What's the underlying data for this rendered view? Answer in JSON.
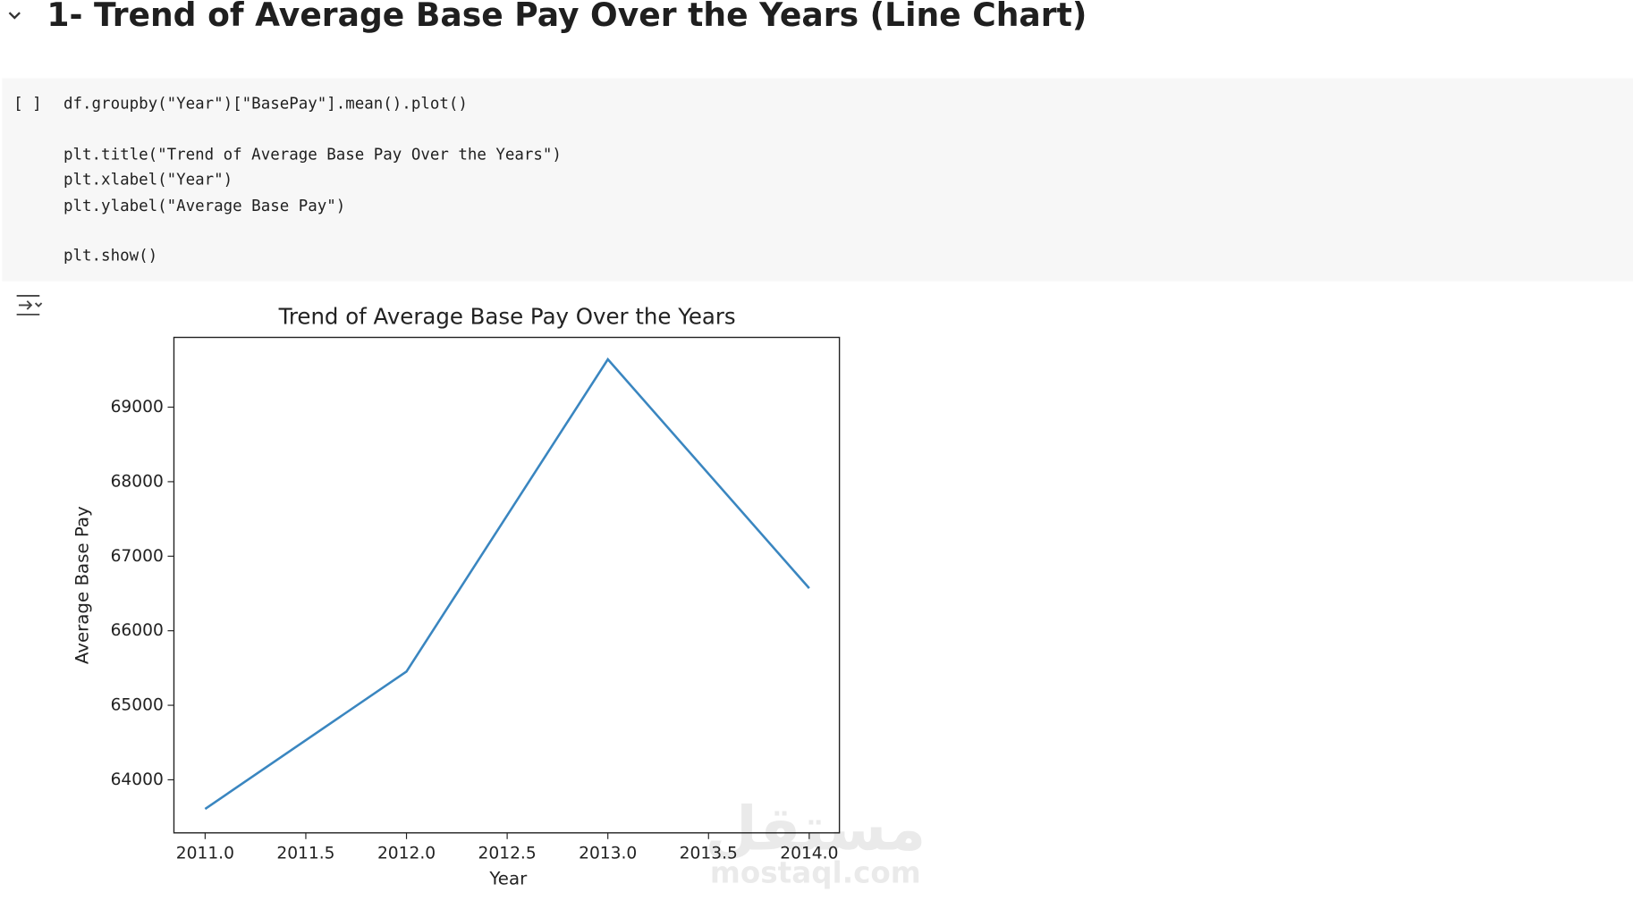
{
  "header": {
    "title": "1- Trend of Average Base Pay Over the Years (Line Chart)"
  },
  "cell": {
    "prompt": "[ ]",
    "code": [
      "df.groupby(\"Year\")[\"BasePay\"].mean().plot()",
      "plt.title(\"Trend of Average Base Pay Over the Years\")",
      "plt.xlabel(\"Year\")",
      "plt.ylabel(\"Average Base Pay\")",
      "plt.show()"
    ]
  },
  "watermark": {
    "arabic": "مستقل",
    "site": "mostaql.com"
  },
  "chart_data": {
    "type": "line",
    "title": "Trend of Average Base Pay Over the Years",
    "x_label": "Year",
    "y_label": "Average Base Pay",
    "x": [
      2011,
      2012,
      2013,
      2014
    ],
    "series": [
      {
        "name": "BasePay",
        "color": "#3a86c0",
        "values": [
          63609,
          65453,
          69642,
          66570
        ]
      }
    ],
    "xlim": [
      2010.845,
      2014.15
    ],
    "ylim": [
      63288,
      69936
    ],
    "xticks": [
      {
        "value": 2011,
        "label": "2011.0"
      },
      {
        "value": 2011.5,
        "label": "2011.5"
      },
      {
        "value": 2012,
        "label": "2012.0"
      },
      {
        "value": 2012.5,
        "label": "2012.5"
      },
      {
        "value": 2013,
        "label": "2013.0"
      },
      {
        "value": 2013.5,
        "label": "2013.5"
      },
      {
        "value": 2014,
        "label": "2014.0"
      }
    ],
    "yticks": [
      64000,
      65000,
      66000,
      67000,
      68000,
      69000
    ],
    "grid": false
  }
}
